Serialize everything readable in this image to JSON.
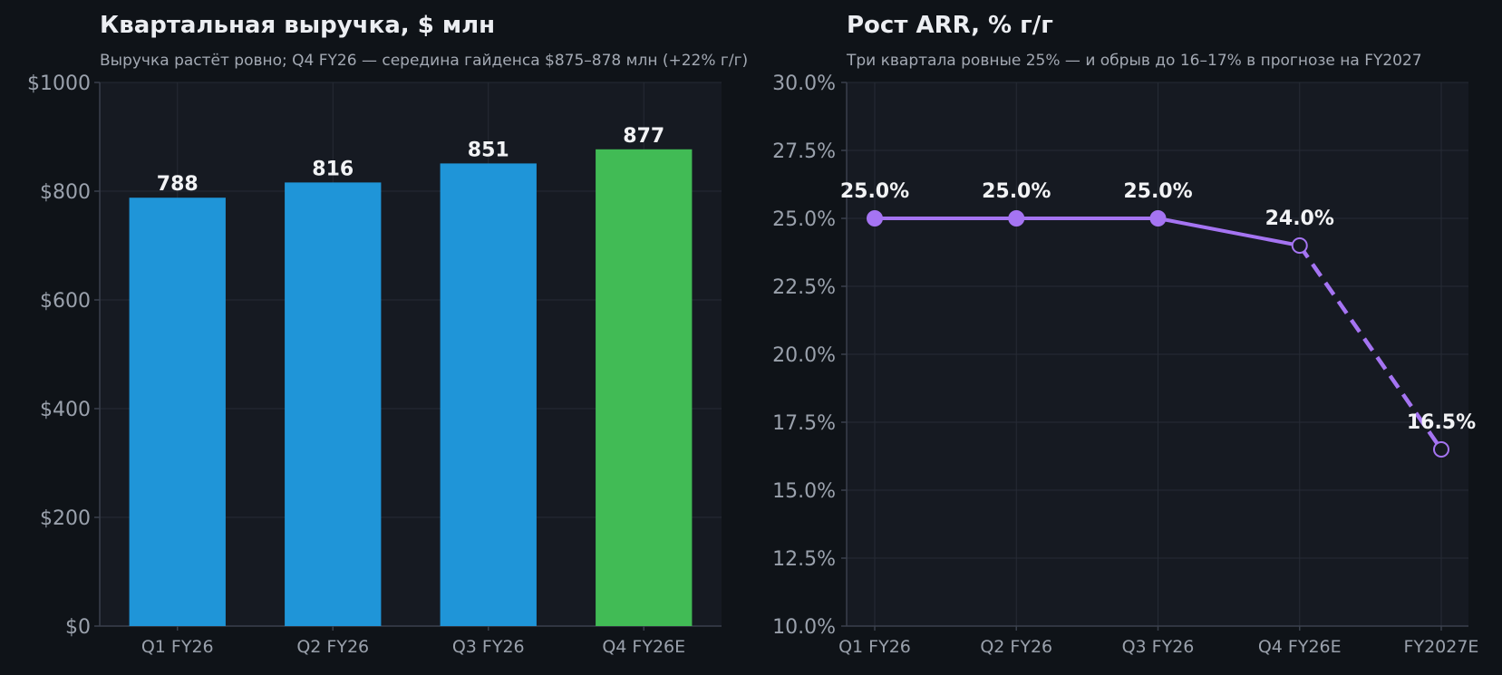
{
  "theme": {
    "background": "#0f1318",
    "plot_background": "#161a22",
    "grid": "#262b35",
    "axis": "#3a404c",
    "tick_text": "#9aa1ac",
    "title_text": "#eceef2",
    "subtitle_text": "#a3a9b3",
    "label_text": "#f2f3f5"
  },
  "chart_data": [
    {
      "type": "bar",
      "title": "Квартальная выручка, $ млн",
      "subtitle": "Выручка растёт ровно; Q4 FY26 — середина гайденса $875–878 млн (+22% г/г)",
      "xlabel": "",
      "ylabel": "",
      "categories": [
        "Q1 FY26",
        "Q2 FY26",
        "Q3 FY26",
        "Q4 FY26E"
      ],
      "values": [
        788,
        816,
        851,
        877
      ],
      "data_labels": [
        "788",
        "816",
        "851",
        "877"
      ],
      "ylim": [
        0,
        1000
      ],
      "yticks": [
        0,
        200,
        400,
        600,
        800,
        1000
      ],
      "ytick_labels": [
        "$0",
        "$200",
        "$400",
        "$600",
        "$800",
        "$1000"
      ],
      "bar_colors": [
        "#1f95d8",
        "#1f95d8",
        "#1f95d8",
        "#41bb55"
      ],
      "grid": true
    },
    {
      "type": "line",
      "title": "Рост ARR, % г/г",
      "subtitle": "Три квартала ровные 25% — и обрыв до 16–17% в прогнозе на FY2027",
      "xlabel": "",
      "ylabel": "",
      "categories": [
        "Q1 FY26",
        "Q2 FY26",
        "Q3 FY26",
        "Q4 FY26E",
        "FY2027E"
      ],
      "values": [
        25.0,
        25.0,
        25.0,
        24.0,
        16.5
      ],
      "data_labels": [
        "25.0%",
        "25.0%",
        "25.0%",
        "24.0%",
        "16.5%"
      ],
      "actual_points": 3,
      "ylim": [
        10,
        30
      ],
      "yticks": [
        10,
        12.5,
        15,
        17.5,
        20,
        22.5,
        25,
        27.5,
        30
      ],
      "ytick_labels": [
        "10.0%",
        "12.5%",
        "15.0%",
        "17.5%",
        "20.0%",
        "22.5%",
        "25.0%",
        "27.5%",
        "30.0%"
      ],
      "line_color": "#a574f2",
      "grid": true
    }
  ]
}
